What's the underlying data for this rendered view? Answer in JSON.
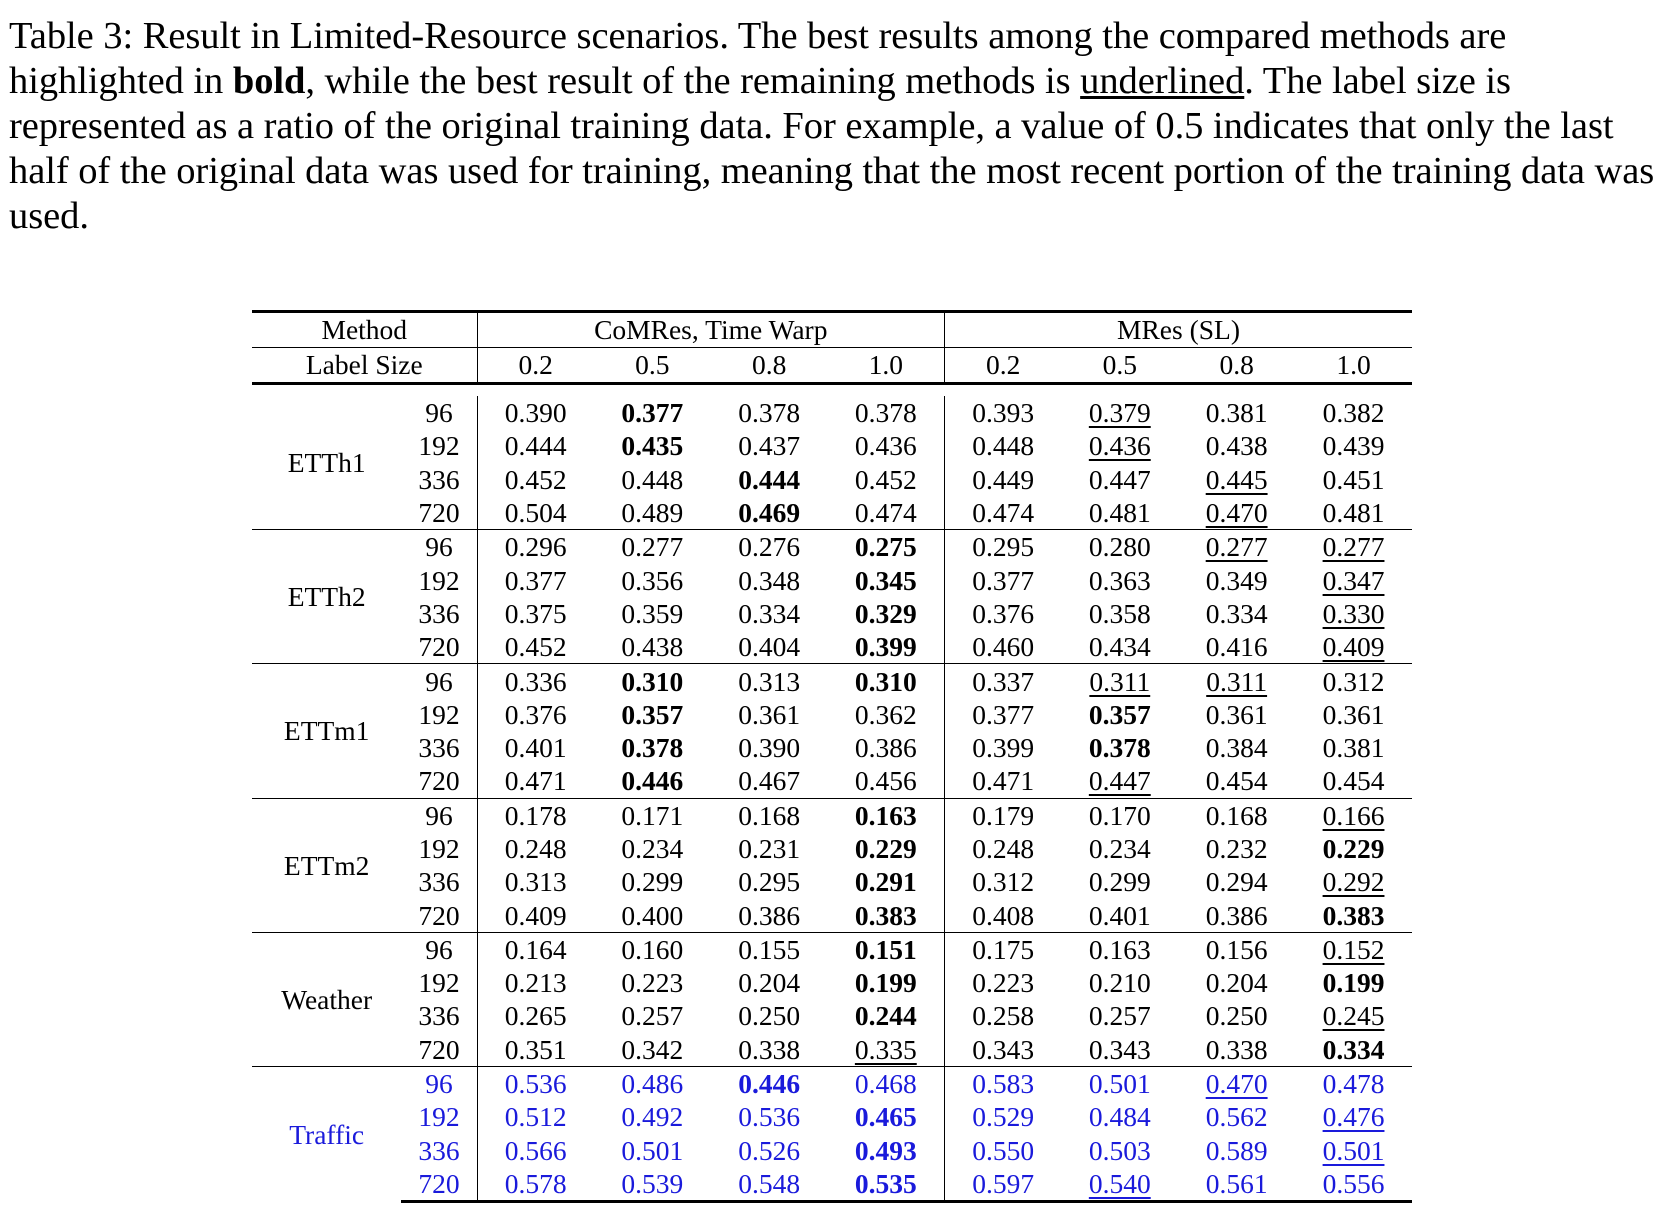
{
  "caption": {
    "part1": "Table 3: Result in Limited-Resource scenarios. The best results among the compared methods are highlighted in ",
    "bold_word": "bold",
    "part2": ", while the best result of the remaining methods is ",
    "underlined_word": "underlined",
    "part3": ". The label size is represented as a ratio of the original training data. For example, a value of 0.5 indicates that only the last half of the original data was used for training, meaning that the most recent portion of the training data was used."
  },
  "table": {
    "method_label": "Method",
    "label_size_label": "Label Size",
    "groups": [
      "CoMRes, Time Warp",
      "MRes (SL)"
    ],
    "ratios": [
      "0.2",
      "0.5",
      "0.8",
      "1.0"
    ],
    "datasets": [
      {
        "name": "ETTh1",
        "rows": [
          {
            "h": "96",
            "v": [
              "0.390",
              "0.377",
              "0.378",
              "0.378",
              "0.393",
              "0.379",
              "0.381",
              "0.382"
            ],
            "bold": [
              1
            ],
            "under": [
              5
            ]
          },
          {
            "h": "192",
            "v": [
              "0.444",
              "0.435",
              "0.437",
              "0.436",
              "0.448",
              "0.436",
              "0.438",
              "0.439"
            ],
            "bold": [
              1
            ],
            "under": [
              5
            ]
          },
          {
            "h": "336",
            "v": [
              "0.452",
              "0.448",
              "0.444",
              "0.452",
              "0.449",
              "0.447",
              "0.445",
              "0.451"
            ],
            "bold": [
              2
            ],
            "under": [
              6
            ]
          },
          {
            "h": "720",
            "v": [
              "0.504",
              "0.489",
              "0.469",
              "0.474",
              "0.474",
              "0.481",
              "0.470",
              "0.481"
            ],
            "bold": [
              2
            ],
            "under": [
              6
            ]
          }
        ]
      },
      {
        "name": "ETTh2",
        "rows": [
          {
            "h": "96",
            "v": [
              "0.296",
              "0.277",
              "0.276",
              "0.275",
              "0.295",
              "0.280",
              "0.277",
              "0.277"
            ],
            "bold": [
              3
            ],
            "under": [
              6,
              7
            ]
          },
          {
            "h": "192",
            "v": [
              "0.377",
              "0.356",
              "0.348",
              "0.345",
              "0.377",
              "0.363",
              "0.349",
              "0.347"
            ],
            "bold": [
              3
            ],
            "under": [
              7
            ]
          },
          {
            "h": "336",
            "v": [
              "0.375",
              "0.359",
              "0.334",
              "0.329",
              "0.376",
              "0.358",
              "0.334",
              "0.330"
            ],
            "bold": [
              3
            ],
            "under": [
              7
            ]
          },
          {
            "h": "720",
            "v": [
              "0.452",
              "0.438",
              "0.404",
              "0.399",
              "0.460",
              "0.434",
              "0.416",
              "0.409"
            ],
            "bold": [
              3
            ],
            "under": [
              7
            ]
          }
        ]
      },
      {
        "name": "ETTm1",
        "rows": [
          {
            "h": "96",
            "v": [
              "0.336",
              "0.310",
              "0.313",
              "0.310",
              "0.337",
              "0.311",
              "0.311",
              "0.312"
            ],
            "bold": [
              1,
              3
            ],
            "under": [
              5,
              6
            ]
          },
          {
            "h": "192",
            "v": [
              "0.376",
              "0.357",
              "0.361",
              "0.362",
              "0.377",
              "0.357",
              "0.361",
              "0.361"
            ],
            "bold": [
              1,
              5
            ],
            "under": []
          },
          {
            "h": "336",
            "v": [
              "0.401",
              "0.378",
              "0.390",
              "0.386",
              "0.399",
              "0.378",
              "0.384",
              "0.381"
            ],
            "bold": [
              1,
              5
            ],
            "under": []
          },
          {
            "h": "720",
            "v": [
              "0.471",
              "0.446",
              "0.467",
              "0.456",
              "0.471",
              "0.447",
              "0.454",
              "0.454"
            ],
            "bold": [
              1
            ],
            "under": [
              5
            ]
          }
        ]
      },
      {
        "name": "ETTm2",
        "rows": [
          {
            "h": "96",
            "v": [
              "0.178",
              "0.171",
              "0.168",
              "0.163",
              "0.179",
              "0.170",
              "0.168",
              "0.166"
            ],
            "bold": [
              3
            ],
            "under": [
              7
            ]
          },
          {
            "h": "192",
            "v": [
              "0.248",
              "0.234",
              "0.231",
              "0.229",
              "0.248",
              "0.234",
              "0.232",
              "0.229"
            ],
            "bold": [
              3,
              7
            ],
            "under": []
          },
          {
            "h": "336",
            "v": [
              "0.313",
              "0.299",
              "0.295",
              "0.291",
              "0.312",
              "0.299",
              "0.294",
              "0.292"
            ],
            "bold": [
              3
            ],
            "under": [
              7
            ]
          },
          {
            "h": "720",
            "v": [
              "0.409",
              "0.400",
              "0.386",
              "0.383",
              "0.408",
              "0.401",
              "0.386",
              "0.383"
            ],
            "bold": [
              3,
              7
            ],
            "under": []
          }
        ]
      },
      {
        "name": "Weather",
        "rows": [
          {
            "h": "96",
            "v": [
              "0.164",
              "0.160",
              "0.155",
              "0.151",
              "0.175",
              "0.163",
              "0.156",
              "0.152"
            ],
            "bold": [
              3
            ],
            "under": [
              7
            ]
          },
          {
            "h": "192",
            "v": [
              "0.213",
              "0.223",
              "0.204",
              "0.199",
              "0.223",
              "0.210",
              "0.204",
              "0.199"
            ],
            "bold": [
              3,
              7
            ],
            "under": []
          },
          {
            "h": "336",
            "v": [
              "0.265",
              "0.257",
              "0.250",
              "0.244",
              "0.258",
              "0.257",
              "0.250",
              "0.245"
            ],
            "bold": [
              3
            ],
            "under": [
              7
            ]
          },
          {
            "h": "720",
            "v": [
              "0.351",
              "0.342",
              "0.338",
              "0.335",
              "0.343",
              "0.343",
              "0.338",
              "0.334"
            ],
            "bold": [
              7
            ],
            "under": [
              3
            ]
          }
        ]
      },
      {
        "name": "Traffic",
        "color": "#1a1adb",
        "rows": [
          {
            "h": "96",
            "v": [
              "0.536",
              "0.486",
              "0.446",
              "0.468",
              "0.583",
              "0.501",
              "0.470",
              "0.478"
            ],
            "bold": [
              2
            ],
            "under": [
              6
            ]
          },
          {
            "h": "192",
            "v": [
              "0.512",
              "0.492",
              "0.536",
              "0.465",
              "0.529",
              "0.484",
              "0.562",
              "0.476"
            ],
            "bold": [
              3
            ],
            "under": [
              7
            ]
          },
          {
            "h": "336",
            "v": [
              "0.566",
              "0.501",
              "0.526",
              "0.493",
              "0.550",
              "0.503",
              "0.589",
              "0.501"
            ],
            "bold": [
              3
            ],
            "under": [
              7
            ]
          },
          {
            "h": "720",
            "v": [
              "0.578",
              "0.539",
              "0.548",
              "0.535",
              "0.597",
              "0.540",
              "0.561",
              "0.556"
            ],
            "bold": [
              3
            ],
            "under": [
              5
            ]
          }
        ]
      }
    ]
  }
}
